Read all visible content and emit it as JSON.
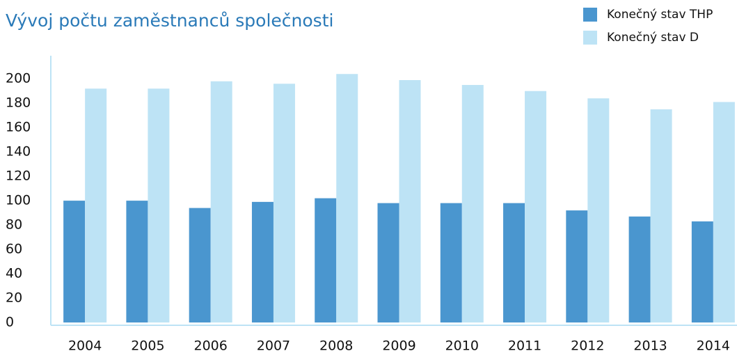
{
  "chart_data": {
    "type": "bar",
    "title": "Vývoj počtu zaměstnanců společnosti",
    "categories": [
      "2004",
      "2005",
      "2006",
      "2007",
      "2008",
      "2009",
      "2010",
      "2011",
      "2012",
      "2013",
      "2014"
    ],
    "series": [
      {
        "name": "Konečný stav THP",
        "color": "#4a96cf",
        "values": [
          100,
          100,
          94,
          99,
          102,
          98,
          98,
          98,
          92,
          87,
          83
        ]
      },
      {
        "name": "Konečný stav D",
        "color": "#bde3f5",
        "values": [
          192,
          192,
          198,
          196,
          204,
          199,
          195,
          190,
          184,
          175,
          181
        ]
      }
    ],
    "ylim": [
      0,
      219
    ],
    "yticks": [
      0,
      20,
      40,
      60,
      80,
      100,
      120,
      140,
      160,
      180,
      200
    ],
    "grid": false,
    "legend": "top-right"
  }
}
